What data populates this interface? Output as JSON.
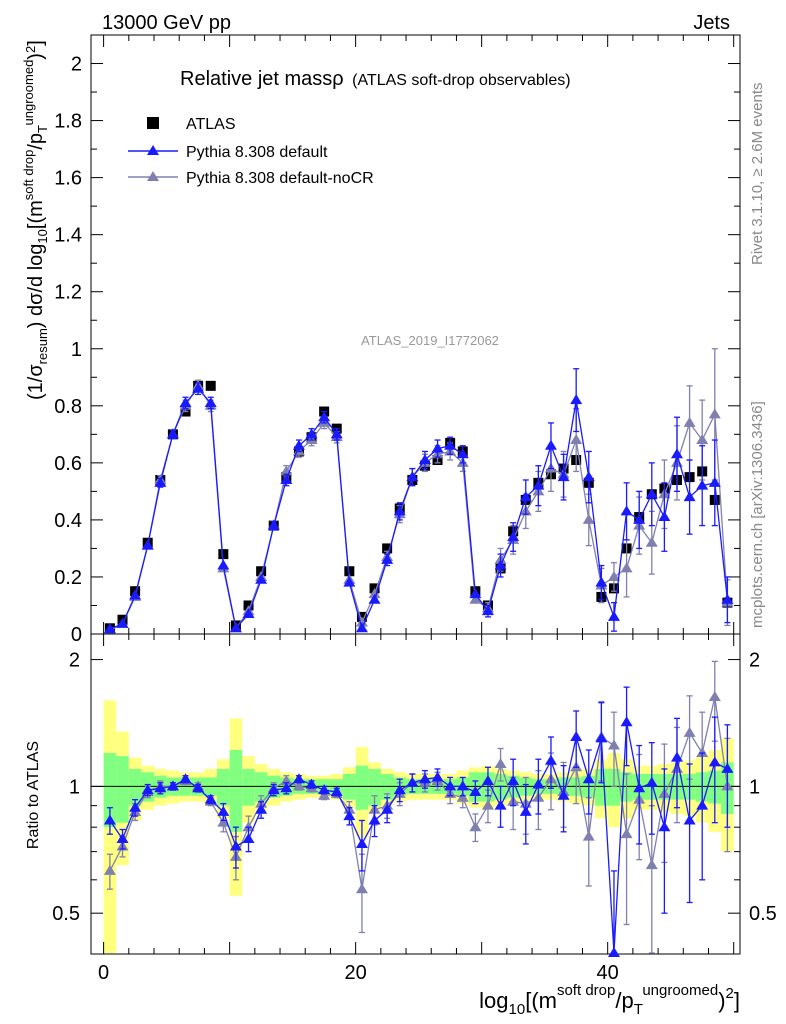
{
  "header": {
    "left": "13000 GeV pp",
    "right": "Jets"
  },
  "side_labels": {
    "rivet": "Rivet 3.1.10, ≥ 2.6M events",
    "mcplots": "mcplots.cern.ch [arXiv:1306.3436]"
  },
  "watermark": "ATLAS_2019_I1772062",
  "colors": {
    "data": "#000000",
    "mc1": "#1a1aff",
    "mc2": "#8080b0",
    "band_inner": "#80ff80",
    "band_outer": "#ffff80"
  },
  "chart_data": [
    {
      "type": "scatter",
      "title": "Relative jet massρ",
      "subtitle": "(ATLAS soft-drop observables)",
      "ylabel": "(1/σresum) dσ/d log10[(m soft drop/pT ungroomed)2]",
      "xlim": [
        -1,
        50.5
      ],
      "ylim": [
        0,
        2.1
      ],
      "yticks": [
        "0",
        "0.2",
        "0.4",
        "0.6",
        "0.8",
        "1",
        "1.2",
        "1.4",
        "1.6",
        "1.8",
        "2"
      ],
      "legend": [
        "ATLAS",
        "Pythia 8.308 default",
        "Pythia 8.308 default-noCR"
      ],
      "legend_position": "top-left",
      "series": [
        {
          "name": "ATLAS",
          "marker": "square",
          "x": [
            0.5,
            1.5,
            2.5,
            3.5,
            4.5,
            5.5,
            6.5,
            7.5,
            8.5,
            9.5,
            10.5,
            11.5,
            12.5,
            13.5,
            14.5,
            15.5,
            16.5,
            17.5,
            18.5,
            19.5,
            20.5,
            21.5,
            22.5,
            23.5,
            24.5,
            25.5,
            26.5,
            27.5,
            28.5,
            29.5,
            30.5,
            31.5,
            32.5,
            33.5,
            34.5,
            35.5,
            36.5,
            37.5,
            38.5,
            39.5,
            40.5,
            41.5,
            42.5,
            43.5,
            44.5,
            45.5,
            46.5,
            47.5,
            48.5,
            49.5
          ],
          "y": [
            0.02,
            0.05,
            0.15,
            0.32,
            0.54,
            0.7,
            0.78,
            0.87,
            0.87,
            0.28,
            0.03,
            0.1,
            0.22,
            0.38,
            0.55,
            0.64,
            0.69,
            0.78,
            0.72,
            0.22,
            0.06,
            0.16,
            0.3,
            0.44,
            0.54,
            0.59,
            0.61,
            0.67,
            0.64,
            0.15,
            0.1,
            0.23,
            0.36,
            0.47,
            0.53,
            0.56,
            0.58,
            0.61,
            0.53,
            0.13,
            0.16,
            0.3,
            0.41,
            0.49,
            0.51,
            0.54,
            0.55,
            0.57,
            0.47,
            0.11
          ]
        },
        {
          "name": "Pythia 8.308 default",
          "marker": "triangle",
          "x": [
            0.5,
            1.5,
            2.5,
            3.5,
            4.5,
            5.5,
            6.5,
            7.5,
            8.5,
            9.5,
            10.5,
            11.5,
            12.5,
            13.5,
            14.5,
            15.5,
            16.5,
            17.5,
            18.5,
            19.5,
            20.5,
            21.5,
            22.5,
            23.5,
            24.5,
            25.5,
            26.5,
            27.5,
            28.5,
            29.5,
            30.5,
            31.5,
            32.5,
            33.5,
            34.5,
            35.5,
            36.5,
            37.5,
            38.5,
            39.5,
            40.5,
            41.5,
            42.5,
            43.5,
            44.5,
            45.5,
            46.5,
            47.5,
            48.5,
            49.5
          ],
          "y": [
            0.017,
            0.036,
            0.135,
            0.31,
            0.53,
            0.7,
            0.81,
            0.86,
            0.81,
            0.24,
            0.02,
            0.07,
            0.19,
            0.38,
            0.54,
            0.66,
            0.7,
            0.76,
            0.7,
            0.18,
            0.02,
            0.12,
            0.26,
            0.43,
            0.55,
            0.61,
            0.65,
            0.66,
            0.63,
            0.14,
            0.08,
            0.24,
            0.34,
            0.48,
            0.52,
            0.66,
            0.55,
            0.82,
            0.55,
            0.18,
            0.06,
            0.43,
            0.4,
            0.49,
            0.41,
            0.63,
            0.48,
            0.52,
            0.53,
            0.12
          ],
          "err": [
            0.005,
            0.005,
            0.01,
            0.01,
            0.015,
            0.015,
            0.02,
            0.02,
            0.02,
            0.01,
            0.005,
            0.01,
            0.01,
            0.015,
            0.02,
            0.02,
            0.02,
            0.02,
            0.02,
            0.01,
            0.005,
            0.01,
            0.02,
            0.03,
            0.03,
            0.03,
            0.03,
            0.03,
            0.03,
            0.01,
            0.02,
            0.04,
            0.05,
            0.06,
            0.07,
            0.08,
            0.08,
            0.11,
            0.09,
            0.06,
            0.05,
            0.1,
            0.1,
            0.11,
            0.12,
            0.13,
            0.13,
            0.14,
            0.15,
            0.08
          ]
        },
        {
          "name": "Pythia 8.308 default-noCR",
          "marker": "triangle",
          "x": [
            0.5,
            1.5,
            2.5,
            3.5,
            4.5,
            5.5,
            6.5,
            7.5,
            8.5,
            9.5,
            10.5,
            11.5,
            12.5,
            13.5,
            14.5,
            15.5,
            16.5,
            17.5,
            18.5,
            19.5,
            20.5,
            21.5,
            22.5,
            23.5,
            24.5,
            25.5,
            26.5,
            27.5,
            28.5,
            29.5,
            30.5,
            31.5,
            32.5,
            33.5,
            34.5,
            35.5,
            36.5,
            37.5,
            38.5,
            39.5,
            40.5,
            41.5,
            42.5,
            43.5,
            44.5,
            45.5,
            46.5,
            47.5,
            48.5,
            49.5
          ],
          "y": [
            0.013,
            0.035,
            0.13,
            0.31,
            0.54,
            0.7,
            0.8,
            0.87,
            0.8,
            0.23,
            0.02,
            0.08,
            0.2,
            0.38,
            0.57,
            0.64,
            0.68,
            0.74,
            0.69,
            0.19,
            0.04,
            0.14,
            0.27,
            0.42,
            0.55,
            0.6,
            0.63,
            0.64,
            0.6,
            0.12,
            0.09,
            0.26,
            0.33,
            0.43,
            0.5,
            0.58,
            0.56,
            0.68,
            0.4,
            0.17,
            0.2,
            0.23,
            0.38,
            0.32,
            0.49,
            0.6,
            0.74,
            0.68,
            0.77,
            0.11
          ],
          "err": [
            0.005,
            0.005,
            0.01,
            0.01,
            0.015,
            0.015,
            0.02,
            0.02,
            0.02,
            0.01,
            0.005,
            0.01,
            0.01,
            0.015,
            0.02,
            0.02,
            0.02,
            0.02,
            0.02,
            0.01,
            0.005,
            0.01,
            0.02,
            0.03,
            0.03,
            0.03,
            0.03,
            0.03,
            0.03,
            0.01,
            0.02,
            0.04,
            0.05,
            0.06,
            0.07,
            0.08,
            0.08,
            0.11,
            0.09,
            0.06,
            0.05,
            0.1,
            0.1,
            0.11,
            0.12,
            0.13,
            0.13,
            0.14,
            0.23,
            0.08
          ]
        }
      ]
    },
    {
      "type": "scatter",
      "ylabel": "Ratio to ATLAS",
      "xlabel": "log10[(m soft drop/pT ungroomed)2]",
      "xlim": [
        -1,
        50.5
      ],
      "xticks": [
        "0",
        "20",
        "40"
      ],
      "ylim": [
        0.4,
        2.3
      ],
      "yscale": "log",
      "yticks": [
        "0.5",
        "1",
        "2"
      ],
      "reference_line": 1,
      "uncertainty_band": {
        "x": [
          0.5,
          1.5,
          2.5,
          3.5,
          4.5,
          5.5,
          6.5,
          7.5,
          8.5,
          9.5,
          10.5,
          11.5,
          12.5,
          13.5,
          14.5,
          15.5,
          16.5,
          17.5,
          18.5,
          19.5,
          20.5,
          21.5,
          22.5,
          23.5,
          24.5,
          25.5,
          26.5,
          27.5,
          28.5,
          29.5,
          30.5,
          31.5,
          32.5,
          33.5,
          34.5,
          35.5,
          36.5,
          37.5,
          38.5,
          39.5,
          40.5,
          41.5,
          42.5,
          43.5,
          44.5,
          45.5,
          46.5,
          47.5,
          48.5,
          49.5
        ],
        "inner": [
          0.2,
          0.18,
          0.1,
          0.08,
          0.06,
          0.05,
          0.05,
          0.05,
          0.05,
          0.1,
          0.22,
          0.1,
          0.08,
          0.06,
          0.05,
          0.04,
          0.04,
          0.04,
          0.04,
          0.07,
          0.12,
          0.1,
          0.07,
          0.05,
          0.04,
          0.04,
          0.04,
          0.04,
          0.05,
          0.08,
          0.08,
          0.07,
          0.06,
          0.05,
          0.04,
          0.04,
          0.05,
          0.05,
          0.06,
          0.1,
          0.1,
          0.08,
          0.07,
          0.07,
          0.07,
          0.07,
          0.07,
          0.08,
          0.09,
          0.14
        ],
        "outer": [
          0.6,
          0.35,
          0.17,
          0.12,
          0.1,
          0.09,
          0.08,
          0.08,
          0.1,
          0.16,
          0.45,
          0.18,
          0.13,
          0.1,
          0.08,
          0.07,
          0.06,
          0.06,
          0.07,
          0.11,
          0.24,
          0.14,
          0.1,
          0.08,
          0.07,
          0.07,
          0.07,
          0.07,
          0.09,
          0.11,
          0.12,
          0.1,
          0.09,
          0.08,
          0.07,
          0.07,
          0.08,
          0.09,
          0.1,
          0.16,
          0.2,
          0.16,
          0.12,
          0.12,
          0.13,
          0.14,
          0.15,
          0.18,
          0.22,
          0.3
        ]
      },
      "series": [
        {
          "name": "Pythia 8.308 default",
          "x": [
            0.5,
            1.5,
            2.5,
            3.5,
            4.5,
            5.5,
            6.5,
            7.5,
            8.5,
            9.5,
            10.5,
            11.5,
            12.5,
            13.5,
            14.5,
            15.5,
            16.5,
            17.5,
            18.5,
            19.5,
            20.5,
            21.5,
            22.5,
            23.5,
            24.5,
            25.5,
            26.5,
            27.5,
            28.5,
            29.5,
            30.5,
            31.5,
            32.5,
            33.5,
            34.5,
            35.5,
            36.5,
            37.5,
            38.5,
            39.5,
            40.5,
            41.5,
            42.5,
            43.5,
            44.5,
            45.5,
            46.5,
            47.5,
            48.5,
            49.5
          ],
          "y": [
            0.83,
            0.75,
            0.89,
            0.98,
            0.99,
            1.0,
            1.04,
            0.99,
            0.93,
            0.87,
            0.72,
            0.75,
            0.88,
            0.98,
            0.99,
            1.04,
            1.01,
            0.98,
            0.97,
            0.85,
            0.73,
            0.83,
            0.88,
            0.98,
            1.02,
            1.04,
            1.05,
            1.0,
            1.0,
            0.97,
            1.03,
            0.9,
            1.03,
            0.87,
            1.01,
            1.15,
            0.95,
            1.31,
            1.04,
            1.3,
            0.38,
            1.42,
            0.99,
            1.02,
            0.8,
            1.17,
            0.83,
            0.9,
            1.14,
            1.1
          ],
          "err": [
            0.06,
            0.04,
            0.04,
            0.03,
            0.03,
            0.02,
            0.02,
            0.02,
            0.02,
            0.04,
            0.08,
            0.05,
            0.04,
            0.03,
            0.03,
            0.02,
            0.02,
            0.02,
            0.02,
            0.04,
            0.1,
            0.07,
            0.06,
            0.06,
            0.05,
            0.05,
            0.05,
            0.05,
            0.05,
            0.06,
            0.08,
            0.1,
            0.13,
            0.14,
            0.15,
            0.16,
            0.17,
            0.2,
            0.18,
            0.28,
            0.25,
            0.3,
            0.26,
            0.25,
            0.3,
            0.28,
            0.3,
            0.3,
            0.32,
            0.3
          ]
        },
        {
          "name": "Pythia 8.308 default-noCR",
          "x": [
            0.5,
            1.5,
            2.5,
            3.5,
            4.5,
            5.5,
            6.5,
            7.5,
            8.5,
            9.5,
            10.5,
            11.5,
            12.5,
            13.5,
            14.5,
            15.5,
            16.5,
            17.5,
            18.5,
            19.5,
            20.5,
            21.5,
            22.5,
            23.5,
            24.5,
            25.5,
            26.5,
            27.5,
            28.5,
            29.5,
            30.5,
            31.5,
            32.5,
            33.5,
            34.5,
            35.5,
            36.5,
            37.5,
            38.5,
            39.5,
            40.5,
            41.5,
            42.5,
            43.5,
            44.5,
            45.5,
            46.5,
            47.5,
            48.5,
            49.5
          ],
          "y": [
            0.63,
            0.72,
            0.87,
            0.97,
            1.0,
            1.0,
            1.03,
            1.0,
            0.92,
            0.82,
            0.68,
            0.8,
            0.91,
            0.99,
            1.03,
            1.0,
            0.99,
            0.95,
            0.96,
            0.88,
            0.57,
            0.88,
            0.9,
            0.96,
            1.02,
            1.02,
            1.03,
            0.96,
            0.94,
            0.8,
            0.9,
            1.13,
            0.92,
            0.91,
            0.94,
            1.04,
            0.97,
            1.11,
            0.76,
            1.31,
            1.25,
            0.77,
            0.93,
            0.65,
            0.96,
            1.1,
            1.34,
            1.2,
            1.63,
            1.0
          ],
          "err": [
            0.06,
            0.04,
            0.04,
            0.03,
            0.03,
            0.02,
            0.02,
            0.02,
            0.02,
            0.04,
            0.08,
            0.05,
            0.04,
            0.03,
            0.03,
            0.02,
            0.02,
            0.02,
            0.02,
            0.04,
            0.12,
            0.07,
            0.06,
            0.06,
            0.05,
            0.05,
            0.05,
            0.05,
            0.05,
            0.06,
            0.08,
            0.1,
            0.13,
            0.14,
            0.15,
            0.16,
            0.17,
            0.2,
            0.18,
            0.28,
            0.25,
            0.3,
            0.26,
            0.25,
            0.3,
            0.28,
            0.3,
            0.3,
            0.35,
            0.3
          ]
        }
      ]
    }
  ]
}
